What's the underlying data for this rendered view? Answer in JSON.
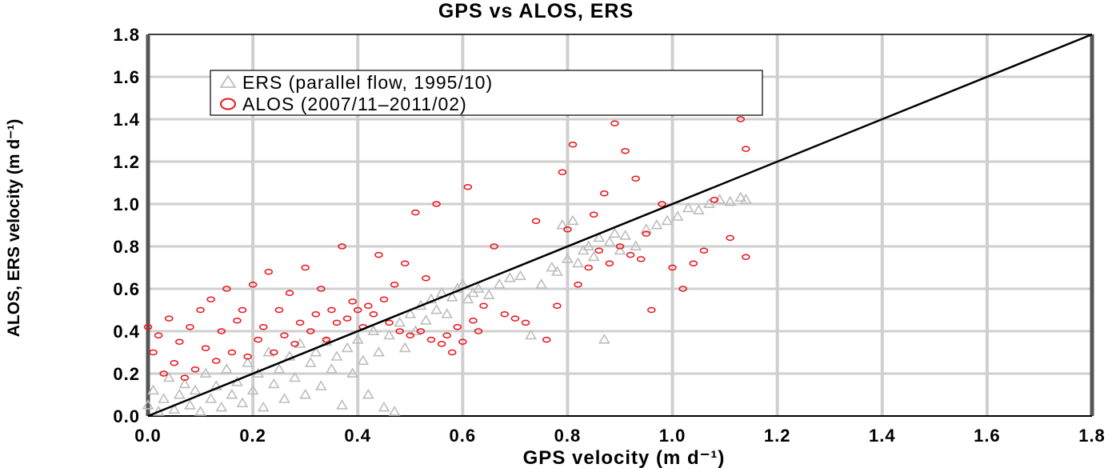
{
  "chart_data": {
    "type": "scatter",
    "title": "GPS vs ALOS, ERS",
    "xlabel": "GPS velocity (m d⁻¹)",
    "ylabel": "ALOS, ERS velocity (m d⁻¹)",
    "xlim": [
      0.0,
      1.8
    ],
    "ylim": [
      0.0,
      1.8
    ],
    "xticks": [
      "0.0",
      "0.2",
      "0.4",
      "0.6",
      "0.8",
      "1.0",
      "1.2",
      "1.4",
      "1.6",
      "1.8"
    ],
    "yticks": [
      "0.0",
      "0.2",
      "0.4",
      "0.6",
      "0.8",
      "1.0",
      "1.2",
      "1.4",
      "1.6",
      "1.8"
    ],
    "grid": true,
    "legend_position": "top-left",
    "reference_line": {
      "label": "1:1",
      "x": [
        0.0,
        1.8
      ],
      "y": [
        0.0,
        1.8
      ],
      "color": "#000000"
    },
    "series": [
      {
        "name": "ERS (parallel flow, 1995/10)",
        "marker": "triangle",
        "color": "#bdbdbd",
        "points": [
          [
            0.0,
            0.05
          ],
          [
            0.01,
            0.12
          ],
          [
            0.02,
            0.02
          ],
          [
            0.03,
            0.08
          ],
          [
            0.04,
            0.18
          ],
          [
            0.05,
            0.03
          ],
          [
            0.06,
            0.1
          ],
          [
            0.07,
            0.15
          ],
          [
            0.08,
            0.05
          ],
          [
            0.09,
            0.12
          ],
          [
            0.1,
            0.02
          ],
          [
            0.11,
            0.2
          ],
          [
            0.12,
            0.08
          ],
          [
            0.13,
            0.14
          ],
          [
            0.14,
            0.04
          ],
          [
            0.15,
            0.22
          ],
          [
            0.16,
            0.1
          ],
          [
            0.17,
            0.16
          ],
          [
            0.18,
            0.06
          ],
          [
            0.19,
            0.25
          ],
          [
            0.2,
            0.12
          ],
          [
            0.21,
            0.2
          ],
          [
            0.22,
            0.04
          ],
          [
            0.23,
            0.3
          ],
          [
            0.24,
            0.15
          ],
          [
            0.25,
            0.22
          ],
          [
            0.26,
            0.08
          ],
          [
            0.27,
            0.28
          ],
          [
            0.28,
            0.18
          ],
          [
            0.29,
            0.34
          ],
          [
            0.3,
            0.1
          ],
          [
            0.31,
            0.25
          ],
          [
            0.32,
            0.3
          ],
          [
            0.33,
            0.14
          ],
          [
            0.34,
            0.35
          ],
          [
            0.35,
            0.22
          ],
          [
            0.36,
            0.28
          ],
          [
            0.37,
            0.05
          ],
          [
            0.38,
            0.32
          ],
          [
            0.39,
            0.2
          ],
          [
            0.4,
            0.36
          ],
          [
            0.41,
            0.26
          ],
          [
            0.42,
            0.1
          ],
          [
            0.43,
            0.4
          ],
          [
            0.44,
            0.3
          ],
          [
            0.45,
            0.04
          ],
          [
            0.46,
            0.38
          ],
          [
            0.47,
            0.02
          ],
          [
            0.48,
            0.44
          ],
          [
            0.49,
            0.32
          ],
          [
            0.5,
            0.48
          ],
          [
            0.51,
            0.4
          ],
          [
            0.52,
            0.52
          ],
          [
            0.53,
            0.45
          ],
          [
            0.54,
            0.55
          ],
          [
            0.55,
            0.5
          ],
          [
            0.56,
            0.58
          ],
          [
            0.57,
            0.48
          ],
          [
            0.58,
            0.56
          ],
          [
            0.59,
            0.6
          ],
          [
            0.6,
            0.62
          ],
          [
            0.61,
            0.55
          ],
          [
            0.62,
            0.58
          ],
          [
            0.63,
            0.6
          ],
          [
            0.65,
            0.57
          ],
          [
            0.67,
            0.62
          ],
          [
            0.69,
            0.65
          ],
          [
            0.71,
            0.66
          ],
          [
            0.73,
            0.38
          ],
          [
            0.75,
            0.62
          ],
          [
            0.77,
            0.7
          ],
          [
            0.78,
            0.68
          ],
          [
            0.79,
            0.9
          ],
          [
            0.8,
            0.74
          ],
          [
            0.81,
            0.92
          ],
          [
            0.82,
            0.72
          ],
          [
            0.83,
            0.78
          ],
          [
            0.84,
            0.8
          ],
          [
            0.85,
            0.75
          ],
          [
            0.86,
            0.84
          ],
          [
            0.87,
            0.36
          ],
          [
            0.88,
            0.82
          ],
          [
            0.89,
            0.86
          ],
          [
            0.9,
            0.78
          ],
          [
            0.91,
            0.85
          ],
          [
            0.93,
            0.8
          ],
          [
            0.95,
            0.88
          ],
          [
            0.97,
            0.9
          ],
          [
            0.99,
            0.92
          ],
          [
            1.01,
            0.94
          ],
          [
            1.03,
            0.98
          ],
          [
            1.05,
            0.97
          ],
          [
            1.07,
            1.0
          ],
          [
            1.09,
            1.02
          ],
          [
            1.11,
            1.01
          ],
          [
            1.13,
            1.03
          ],
          [
            1.14,
            1.02
          ]
        ]
      },
      {
        "name": "ALOS (2007/11–2011/02)",
        "marker": "circle",
        "color": "#e8141b",
        "points": [
          [
            0.0,
            0.42
          ],
          [
            0.01,
            0.3
          ],
          [
            0.02,
            0.38
          ],
          [
            0.03,
            0.2
          ],
          [
            0.04,
            0.46
          ],
          [
            0.05,
            0.25
          ],
          [
            0.06,
            0.35
          ],
          [
            0.07,
            0.18
          ],
          [
            0.08,
            0.42
          ],
          [
            0.09,
            0.22
          ],
          [
            0.1,
            0.5
          ],
          [
            0.11,
            0.32
          ],
          [
            0.12,
            0.55
          ],
          [
            0.13,
            0.26
          ],
          [
            0.14,
            0.4
          ],
          [
            0.15,
            0.6
          ],
          [
            0.16,
            0.3
          ],
          [
            0.17,
            0.45
          ],
          [
            0.18,
            0.5
          ],
          [
            0.19,
            0.28
          ],
          [
            0.2,
            0.62
          ],
          [
            0.21,
            0.36
          ],
          [
            0.22,
            0.42
          ],
          [
            0.23,
            0.68
          ],
          [
            0.24,
            0.3
          ],
          [
            0.25,
            0.5
          ],
          [
            0.26,
            0.38
          ],
          [
            0.27,
            0.58
          ],
          [
            0.28,
            0.34
          ],
          [
            0.29,
            0.44
          ],
          [
            0.3,
            0.7
          ],
          [
            0.31,
            0.4
          ],
          [
            0.32,
            0.48
          ],
          [
            0.33,
            0.6
          ],
          [
            0.34,
            0.36
          ],
          [
            0.35,
            0.5
          ],
          [
            0.36,
            0.44
          ],
          [
            0.37,
            0.8
          ],
          [
            0.38,
            0.46
          ],
          [
            0.39,
            0.54
          ],
          [
            0.4,
            0.5
          ],
          [
            0.41,
            0.42
          ],
          [
            0.42,
            0.52
          ],
          [
            0.43,
            0.48
          ],
          [
            0.44,
            0.76
          ],
          [
            0.45,
            0.55
          ],
          [
            0.46,
            0.44
          ],
          [
            0.47,
            0.62
          ],
          [
            0.48,
            0.4
          ],
          [
            0.49,
            0.72
          ],
          [
            0.5,
            0.38
          ],
          [
            0.51,
            0.96
          ],
          [
            0.52,
            0.4
          ],
          [
            0.53,
            0.65
          ],
          [
            0.54,
            0.36
          ],
          [
            0.55,
            1.0
          ],
          [
            0.56,
            0.34
          ],
          [
            0.57,
            0.38
          ],
          [
            0.58,
            0.3
          ],
          [
            0.59,
            0.42
          ],
          [
            0.6,
            0.35
          ],
          [
            0.61,
            1.08
          ],
          [
            0.62,
            0.45
          ],
          [
            0.63,
            0.4
          ],
          [
            0.64,
            0.52
          ],
          [
            0.66,
            0.8
          ],
          [
            0.68,
            0.48
          ],
          [
            0.7,
            0.46
          ],
          [
            0.72,
            0.44
          ],
          [
            0.74,
            0.92
          ],
          [
            0.76,
            0.36
          ],
          [
            0.78,
            0.52
          ],
          [
            0.79,
            1.15
          ],
          [
            0.8,
            0.88
          ],
          [
            0.81,
            1.28
          ],
          [
            0.82,
            0.62
          ],
          [
            0.84,
            0.7
          ],
          [
            0.85,
            0.95
          ],
          [
            0.86,
            0.78
          ],
          [
            0.87,
            1.05
          ],
          [
            0.88,
            0.72
          ],
          [
            0.89,
            1.38
          ],
          [
            0.9,
            0.8
          ],
          [
            0.91,
            1.25
          ],
          [
            0.92,
            0.76
          ],
          [
            0.93,
            1.12
          ],
          [
            0.94,
            0.74
          ],
          [
            0.95,
            0.86
          ],
          [
            0.96,
            0.5
          ],
          [
            0.98,
            1.0
          ],
          [
            1.0,
            0.7
          ],
          [
            1.02,
            0.6
          ],
          [
            1.04,
            0.72
          ],
          [
            1.06,
            0.78
          ],
          [
            1.08,
            1.02
          ],
          [
            1.11,
            0.84
          ],
          [
            1.13,
            1.4
          ],
          [
            1.14,
            1.26
          ],
          [
            1.14,
            0.75
          ]
        ]
      }
    ]
  }
}
